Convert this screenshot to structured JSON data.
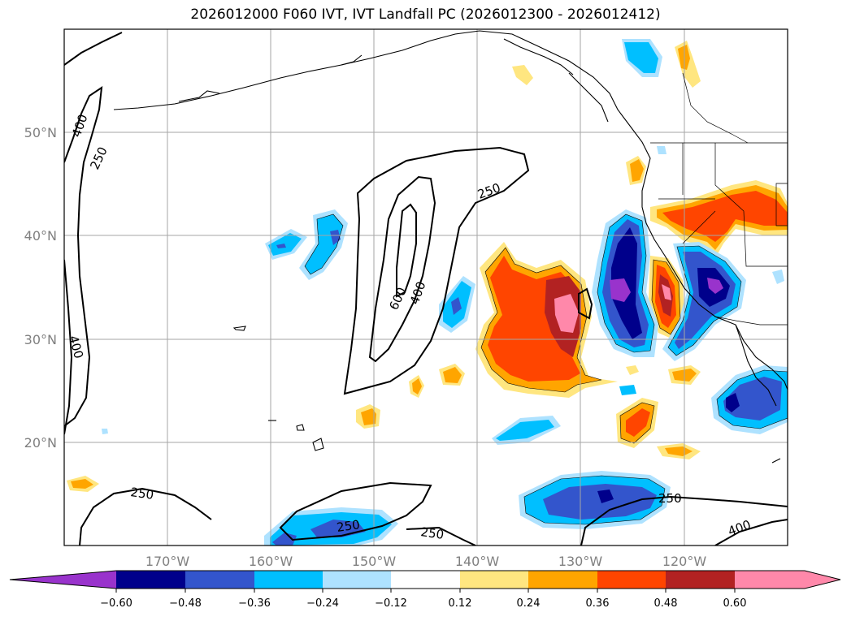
{
  "title": "2026012000 F060 IVT, IVT Landfall PC (2026012300 - 2026012412)",
  "axes": {
    "lon_labels": [
      "170°W",
      "160°W",
      "150°W",
      "140°W",
      "130°W",
      "120°W"
    ],
    "lat_labels": [
      "50°N",
      "40°N",
      "30°N",
      "20°N"
    ],
    "lon_range": [
      -180,
      -110
    ],
    "lat_range": [
      10,
      60
    ]
  },
  "ivt_contours": {
    "levels": [
      250,
      400,
      600
    ],
    "labels": [
      "400",
      "250",
      "250",
      "600",
      "400",
      "400",
      "250",
      "250",
      "250",
      "250",
      "400"
    ]
  },
  "colorbar": {
    "ticks": [
      "−0.60",
      "−0.48",
      "−0.36",
      "−0.24",
      "−0.12",
      "0.12",
      "0.24",
      "0.36",
      "0.48",
      "0.60"
    ],
    "colors": [
      "#9933cc",
      "#00008b",
      "#3355cc",
      "#00bfff",
      "#aee2ff",
      "#ffffff",
      "#ffe680",
      "#ffa500",
      "#ff4500",
      "#b22222",
      "#ff88aa"
    ]
  }
}
